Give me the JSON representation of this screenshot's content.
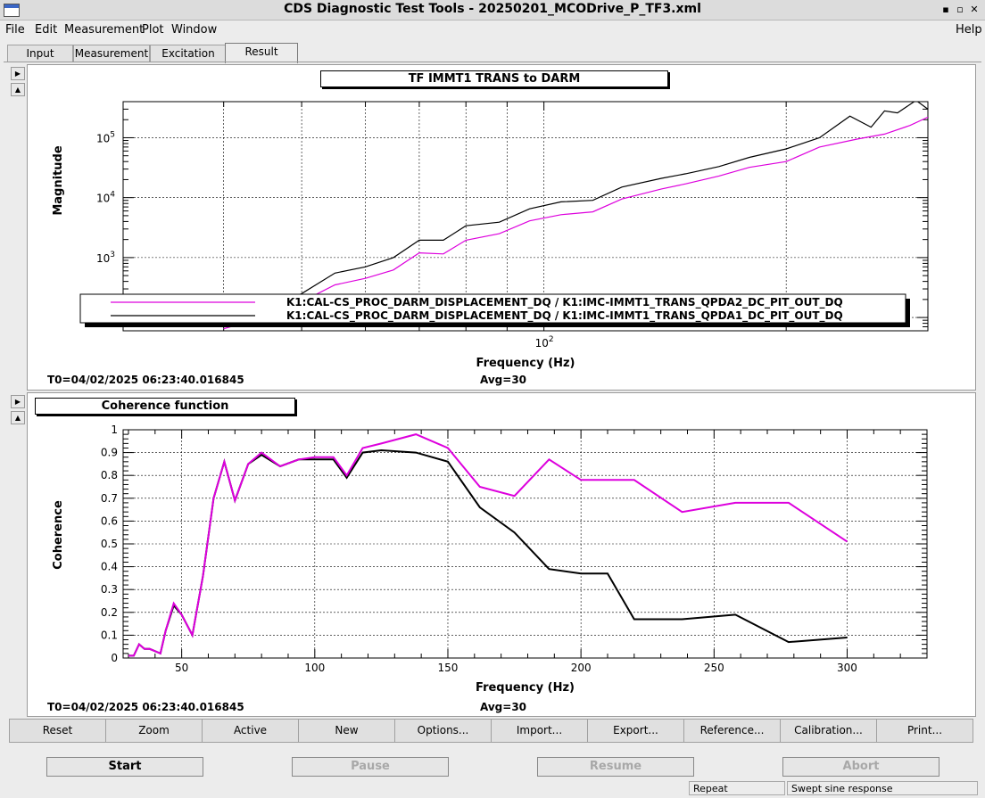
{
  "window": {
    "title": "CDS Diagnostic Test Tools - 20250201_MCODrive_P_TF3.xml",
    "controls": {
      "minimize": "▪",
      "maximize": "▫",
      "close": "✕"
    }
  },
  "menu": {
    "items": [
      "File",
      "Edit",
      "Measurement",
      "Plot",
      "Window"
    ],
    "help": "Help"
  },
  "tabs": [
    "Input",
    "Measurement",
    "Excitation",
    "Result"
  ],
  "active_tab": "Result",
  "panels": [
    {
      "title": "TF IMMT1 TRANS to DARM",
      "t0": "T0=04/02/2025 06:23:40.016845",
      "avg": "Avg=30"
    },
    {
      "title": "Coherence function",
      "t0": "T0=04/02/2025 06:23:40.016845",
      "avg": "Avg=30"
    }
  ],
  "chart_data": [
    {
      "type": "line",
      "title": "TF IMMT1 TRANS to DARM",
      "xlabel": "Frequency (Hz)",
      "ylabel": "Magnitude",
      "xscale": "log",
      "yscale": "log",
      "xlim": [
        30,
        300
      ],
      "ylim": [
        60,
        400000
      ],
      "x_tick_labels": [
        {
          "value": 100,
          "label": "10",
          "exp": "2"
        }
      ],
      "y_tick_labels": [
        {
          "value": 1000,
          "label": "10",
          "exp": "3"
        },
        {
          "value": 10000,
          "label": "10",
          "exp": "4"
        },
        {
          "value": 100000,
          "label": "10",
          "exp": "5"
        }
      ],
      "legend": {
        "placement": "bottom",
        "entries": [
          "K1:CAL-CS_PROC_DARM_DISPLACEMENT_DQ / K1:IMC-IMMT1_TRANS_QPDA2_DC_PIT_OUT_DQ",
          "K1:CAL-CS_PROC_DARM_DISPLACEMENT_DQ / K1:IMC-IMMT1_TRANS_QPDA1_DC_PIT_OUT_DQ"
        ]
      },
      "series": [
        {
          "name": "K1:CAL-CS_PROC_DARM_DISPLACEMENT_DQ / K1:IMC-IMMT1_TRANS_QPDA2_DC_PIT_OUT_DQ",
          "color": "#dd00dd",
          "x": [
            40,
            47,
            55,
            60,
            65,
            70,
            75,
            80,
            88,
            96,
            105,
            115,
            125,
            140,
            150,
            165,
            180,
            200,
            220,
            245,
            265,
            285,
            300
          ],
          "y": [
            65,
            120,
            350,
            450,
            620,
            1200,
            1150,
            1950,
            2500,
            4100,
            5200,
            5800,
            9500,
            14000,
            17000,
            23000,
            32000,
            40000,
            70000,
            95000,
            115000,
            160000,
            220000
          ]
        },
        {
          "name": "K1:CAL-CS_PROC_DARM_DISPLACEMENT_DQ / K1:IMC-IMMT1_TRANS_QPDA1_DC_PIT_OUT_DQ",
          "color": "#000000",
          "x": [
            40,
            45,
            50,
            55,
            60,
            65,
            70,
            75,
            80,
            88,
            96,
            105,
            115,
            125,
            140,
            150,
            165,
            180,
            200,
            220,
            240,
            255,
            265,
            275,
            290,
            300
          ],
          "y": [
            90,
            130,
            250,
            550,
            700,
            1000,
            1950,
            1950,
            3400,
            3900,
            6500,
            8500,
            9000,
            15000,
            21000,
            25000,
            33000,
            47000,
            65000,
            100000,
            230000,
            150000,
            280000,
            260000,
            420000,
            300000
          ]
        }
      ]
    },
    {
      "type": "line",
      "title": "Coherence function",
      "xlabel": "Frequency (Hz)",
      "ylabel": "Coherence",
      "xlim": [
        28,
        330
      ],
      "ylim": [
        0,
        1
      ],
      "x_ticks": [
        50,
        100,
        150,
        200,
        250,
        300
      ],
      "y_ticks": [
        0,
        0.1,
        0.2,
        0.3,
        0.4,
        0.5,
        0.6,
        0.7,
        0.8,
        0.9,
        1
      ],
      "series": [
        {
          "name": "K1:CAL-CS_PROC_DARM_DISPLACEMENT_DQ / K1:IMC-IMMT1_TRANS_QPDA2_DC_PIT_OUT_DQ",
          "color": "#dd00dd",
          "x": [
            30,
            32,
            34,
            36,
            38,
            40,
            42,
            44,
            47,
            50,
            54,
            58,
            62,
            66,
            70,
            75,
            80,
            87,
            94,
            100,
            107,
            112,
            118,
            125,
            138,
            150,
            162,
            175,
            188,
            200,
            210,
            220,
            238,
            258,
            278,
            300
          ],
          "y": [
            0.01,
            0.01,
            0.06,
            0.04,
            0.04,
            0.03,
            0.02,
            0.12,
            0.24,
            0.19,
            0.1,
            0.36,
            0.7,
            0.86,
            0.69,
            0.85,
            0.9,
            0.84,
            0.87,
            0.88,
            0.88,
            0.8,
            0.92,
            0.94,
            0.98,
            0.92,
            0.75,
            0.71,
            0.87,
            0.78,
            0.78,
            0.78,
            0.64,
            0.68,
            0.68,
            0.51
          ]
        },
        {
          "name": "K1:CAL-CS_PROC_DARM_DISPLACEMENT_DQ / K1:IMC-IMMT1_TRANS_QPDA1_DC_PIT_OUT_DQ",
          "color": "#000000",
          "x": [
            30,
            32,
            34,
            36,
            38,
            40,
            42,
            44,
            47,
            50,
            54,
            58,
            62,
            66,
            70,
            75,
            80,
            87,
            94,
            100,
            107,
            112,
            118,
            125,
            138,
            150,
            162,
            175,
            188,
            200,
            210,
            220,
            238,
            258,
            278,
            300
          ],
          "y": [
            0.01,
            0.01,
            0.06,
            0.04,
            0.04,
            0.03,
            0.02,
            0.12,
            0.23,
            0.19,
            0.1,
            0.36,
            0.7,
            0.86,
            0.69,
            0.85,
            0.89,
            0.84,
            0.87,
            0.87,
            0.87,
            0.79,
            0.9,
            0.91,
            0.9,
            0.86,
            0.66,
            0.55,
            0.39,
            0.37,
            0.37,
            0.17,
            0.17,
            0.19,
            0.07,
            0.09
          ]
        }
      ]
    }
  ],
  "toolbar": [
    "Reset",
    "Zoom",
    "Active",
    "New",
    "Options...",
    "Import...",
    "Export...",
    "Reference...",
    "Calibration...",
    "Print..."
  ],
  "controls": [
    {
      "label": "Start",
      "enabled": true
    },
    {
      "label": "Pause",
      "enabled": false
    },
    {
      "label": "Resume",
      "enabled": false
    },
    {
      "label": "Abort",
      "enabled": false
    }
  ],
  "status": {
    "mode": "Repeat",
    "type": "Swept sine response"
  }
}
